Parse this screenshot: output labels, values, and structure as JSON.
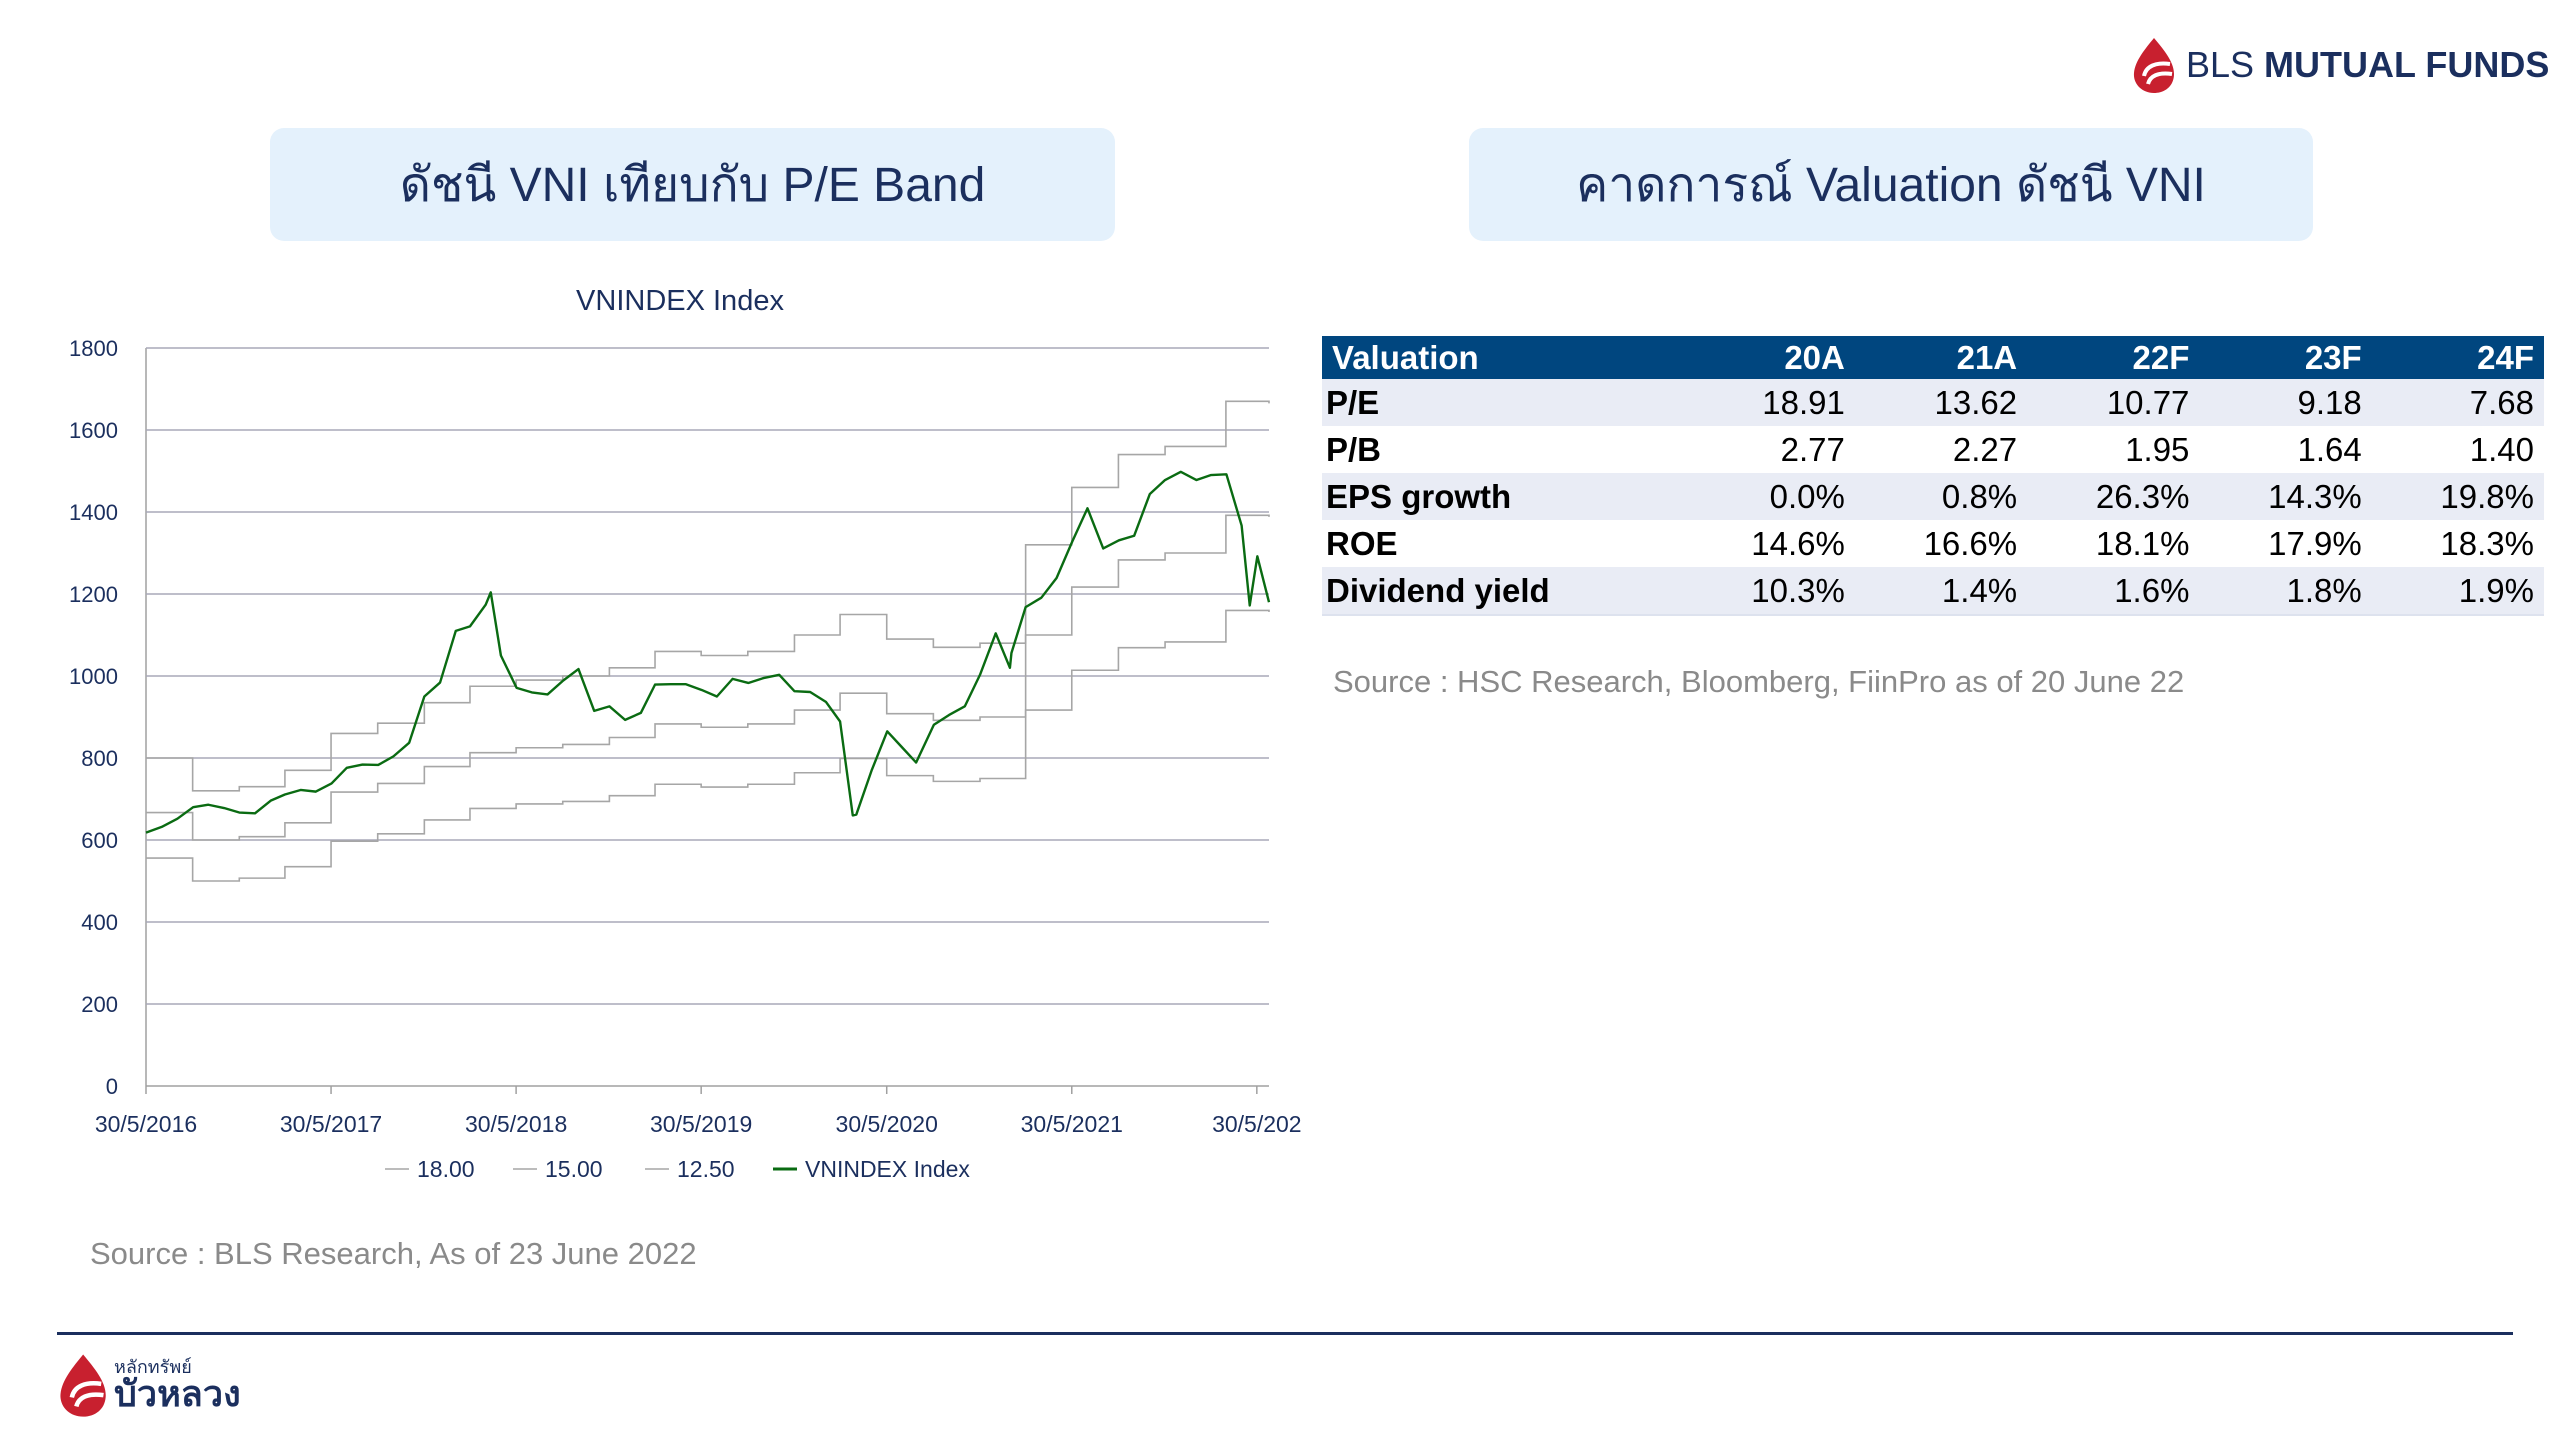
{
  "header": {
    "logo_text_light": "BLS",
    "logo_text_bold": "MUTUAL FUNDS",
    "brand_red": "#c8202f",
    "brand_navy": "#1b2f5e"
  },
  "left_panel": {
    "title": "ดัชนี VNI เทียบกับ P/E Band",
    "source": "Source : BLS Research, As of 23 June 2022"
  },
  "right_panel": {
    "title": "คาดการณ์ Valuation ดัชนี VNI",
    "table": {
      "headers": [
        "Valuation",
        "20A",
        "21A",
        "22F",
        "23F",
        "24F"
      ],
      "rows": [
        [
          "P/E",
          "18.91",
          "13.62",
          "10.77",
          "9.18",
          "7.68"
        ],
        [
          "P/B",
          "2.77",
          "2.27",
          "1.95",
          "1.64",
          "1.40"
        ],
        [
          "EPS growth",
          "0.0%",
          "0.8%",
          "26.3%",
          "14.3%",
          "19.8%"
        ],
        [
          "ROE",
          "14.6%",
          "16.6%",
          "18.1%",
          "17.9%",
          "18.3%"
        ],
        [
          "Dividend yield",
          "10.3%",
          "1.4%",
          "1.6%",
          "1.8%",
          "1.9%"
        ]
      ]
    },
    "source": "Source : HSC Research, Bloomberg, FiinPro as of 20 June 22"
  },
  "footer": {
    "logo_small": "หลักทรัพย์",
    "logo_big": "บัวหลวง"
  },
  "chart_data": {
    "type": "line",
    "title": "VNINDEX Index",
    "xlabel": "",
    "ylabel": "",
    "ylim": [
      0,
      1800
    ],
    "yticks": [
      "0",
      "200",
      "400",
      "600",
      "800",
      "1000",
      "1200",
      "1400",
      "1600",
      "1800"
    ],
    "xlim": [
      "2016-05-30",
      "2022-06-23"
    ],
    "xticks": [
      "30/5/2016",
      "30/5/2017",
      "30/5/2018",
      "30/5/2019",
      "30/5/2020",
      "30/5/2021",
      "30/5/202"
    ],
    "grid": "horizontal",
    "legend": "bottom",
    "band_x": [
      "2016-05-30",
      "2016-08-30",
      "2016-11-30",
      "2017-02-28",
      "2017-05-30",
      "2017-08-30",
      "2017-11-30",
      "2018-02-28",
      "2018-05-30",
      "2018-08-30",
      "2018-11-30",
      "2019-02-28",
      "2019-05-30",
      "2019-08-30",
      "2019-11-30",
      "2020-02-28",
      "2020-05-30",
      "2020-08-30",
      "2020-11-30",
      "2021-02-28",
      "2021-05-30",
      "2021-08-30",
      "2021-11-30",
      "2022-03-30",
      "2022-06-23"
    ],
    "series": [
      {
        "name": "18.00",
        "color": "#a6a6a6",
        "step": true,
        "values": [
          800,
          720,
          730,
          770,
          860,
          885,
          935,
          975,
          990,
          1000,
          1020,
          1060,
          1050,
          1060,
          1100,
          1150,
          1090,
          1070,
          1080,
          1320,
          1460,
          1540,
          1560,
          1670,
          1665
        ]
      },
      {
        "name": "15.00",
        "color": "#a6a6a6",
        "step": true,
        "values": [
          667,
          600,
          608,
          642,
          717,
          738,
          779,
          813,
          825,
          833,
          850,
          883,
          875,
          883,
          917,
          958,
          908,
          892,
          900,
          1100,
          1217,
          1283,
          1300,
          1392,
          1388
        ]
      },
      {
        "name": "12.50",
        "color": "#a6a6a6",
        "step": true,
        "values": [
          556,
          500,
          507,
          535,
          597,
          615,
          649,
          677,
          688,
          694,
          708,
          736,
          729,
          736,
          764,
          799,
          757,
          743,
          750,
          917,
          1014,
          1069,
          1083,
          1160,
          1156
        ]
      },
      {
        "name": "VNINDEX Index",
        "color": "#0a6b12",
        "step": false,
        "x": [
          "2016-05-30",
          "2016-06-30",
          "2016-07-31",
          "2016-08-31",
          "2016-09-30",
          "2016-10-31",
          "2016-11-30",
          "2016-12-31",
          "2017-01-31",
          "2017-02-28",
          "2017-03-31",
          "2017-04-30",
          "2017-05-31",
          "2017-06-30",
          "2017-07-31",
          "2017-08-31",
          "2017-09-30",
          "2017-10-31",
          "2017-11-30",
          "2017-12-31",
          "2018-01-31",
          "2018-02-28",
          "2018-03-31",
          "2018-04-10",
          "2018-04-30",
          "2018-05-31",
          "2018-06-30",
          "2018-07-31",
          "2018-08-31",
          "2018-09-30",
          "2018-10-31",
          "2018-11-30",
          "2018-12-31",
          "2019-01-31",
          "2019-02-28",
          "2019-03-31",
          "2019-04-30",
          "2019-05-31",
          "2019-06-30",
          "2019-07-31",
          "2019-08-31",
          "2019-09-30",
          "2019-10-31",
          "2019-11-30",
          "2019-12-31",
          "2020-01-31",
          "2020-02-28",
          "2020-03-24",
          "2020-03-31",
          "2020-04-30",
          "2020-05-31",
          "2020-06-30",
          "2020-07-27",
          "2020-08-31",
          "2020-09-30",
          "2020-10-31",
          "2020-11-30",
          "2020-12-31",
          "2021-01-28",
          "2021-01-31",
          "2021-02-28",
          "2021-03-31",
          "2021-04-30",
          "2021-05-31",
          "2021-06-30",
          "2021-07-31",
          "2021-08-31",
          "2021-09-30",
          "2021-10-31",
          "2021-11-30",
          "2021-12-31",
          "2022-01-31",
          "2022-02-28",
          "2022-03-31",
          "2022-04-30",
          "2022-05-16",
          "2022-05-31",
          "2022-06-23"
        ],
        "values": [
          618,
          632,
          652,
          680,
          686,
          678,
          667,
          665,
          696,
          711,
          722,
          718,
          738,
          776,
          784,
          783,
          804,
          837,
          950,
          984,
          1110,
          1121,
          1174,
          1204,
          1050,
          971,
          960,
          955,
          989,
          1017,
          915,
          926,
          893,
          910,
          979,
          980,
          980,
          966,
          950,
          993,
          983,
          995,
          1003,
          963,
          961,
          937,
          889,
          660,
          662,
          769,
          865,
          825,
          789,
          881,
          905,
          926,
          1003,
          1104,
          1020,
          1056,
          1168,
          1191,
          1239,
          1328,
          1409,
          1311,
          1331,
          1342,
          1444,
          1478,
          1498,
          1478,
          1490,
          1492,
          1367,
          1172,
          1292,
          1180
        ]
      }
    ]
  }
}
